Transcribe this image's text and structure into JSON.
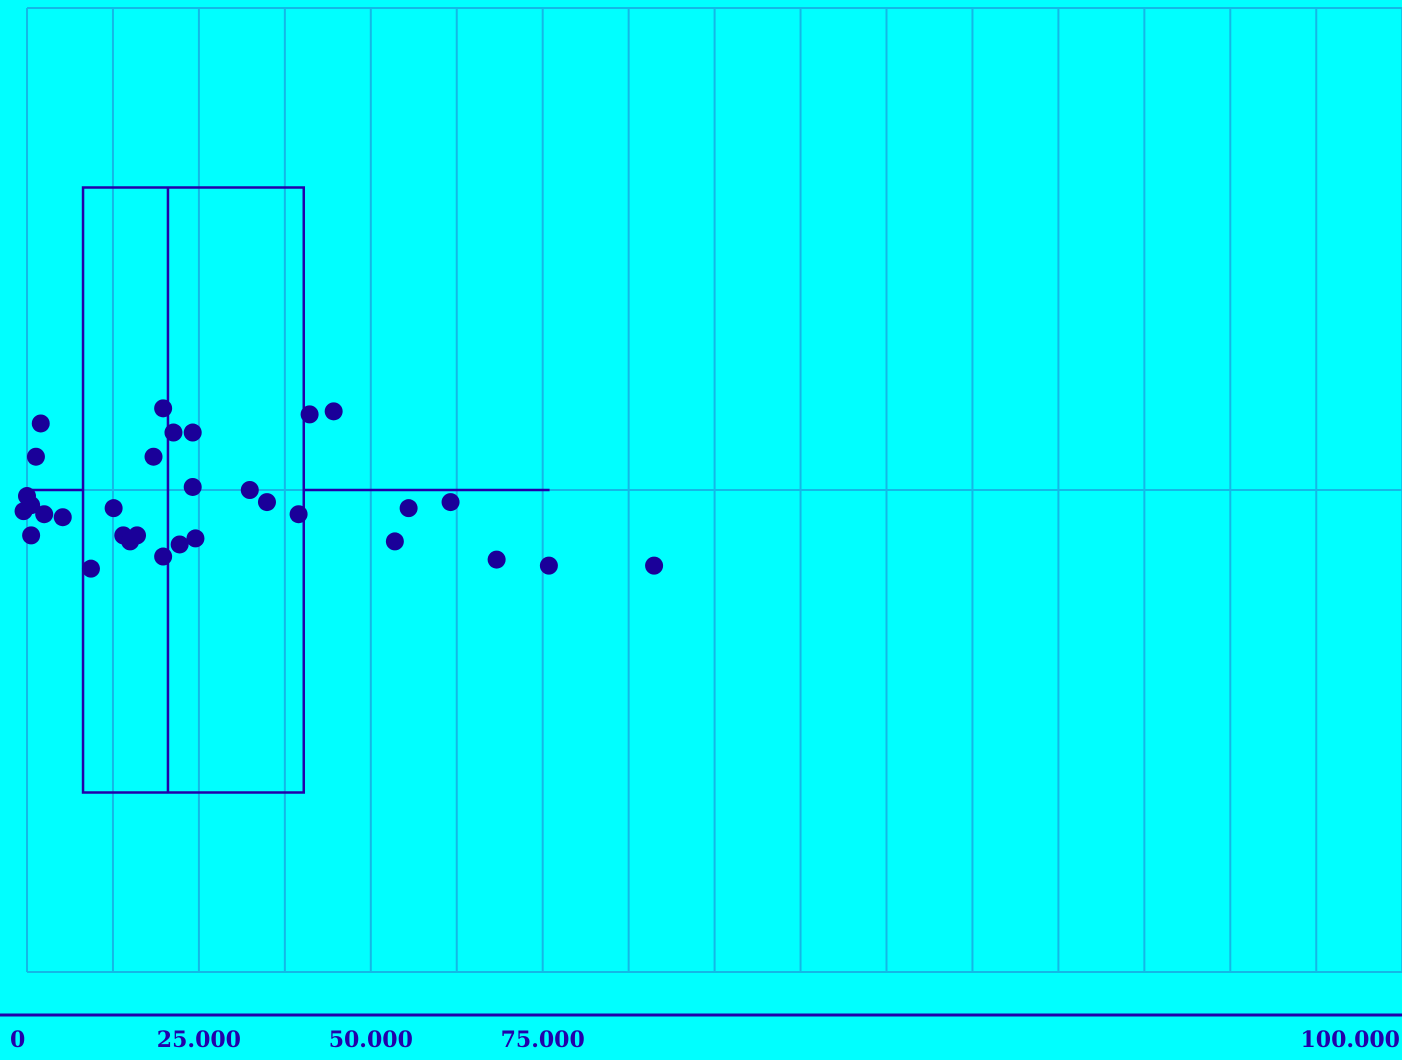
{
  "colors": {
    "background": "#00ffff",
    "grid": "#14b8e6",
    "box": "#2200aa",
    "points": "#1a0099",
    "axis": "#2200aa",
    "tick_label": "#2200aa"
  },
  "chart_data": {
    "type": "box",
    "orientation": "horizontal",
    "title": "",
    "xlabel": "",
    "ylabel": "",
    "xlim": [
      -2000,
      100000
    ],
    "grid": {
      "vertical": true,
      "horizontal": false
    },
    "ticks": [
      0,
      25000,
      50000,
      75000,
      100000
    ],
    "tick_labels": [
      "0",
      "25.000",
      "50.000",
      "75.000",
      "100.000"
    ],
    "box": {
      "whisker_low": 0,
      "q1": 8150,
      "median": 20500,
      "q3": 40250,
      "whisker_high": 76000
    },
    "points": [
      {
        "x": -500,
        "jitter": 0.07
      },
      {
        "x": 0,
        "jitter": 0.02
      },
      {
        "x": 600,
        "jitter": 0.05
      },
      {
        "x": 600,
        "jitter": 0.15
      },
      {
        "x": 1300,
        "jitter": -0.11
      },
      {
        "x": 2000,
        "jitter": -0.22
      },
      {
        "x": 2500,
        "jitter": 0.08
      },
      {
        "x": 5200,
        "jitter": 0.09
      },
      {
        "x": 9300,
        "jitter": 0.26
      },
      {
        "x": 12600,
        "jitter": 0.06
      },
      {
        "x": 14000,
        "jitter": 0.15
      },
      {
        "x": 15000,
        "jitter": 0.17
      },
      {
        "x": 16000,
        "jitter": 0.15
      },
      {
        "x": 18400,
        "jitter": -0.11
      },
      {
        "x": 19800,
        "jitter": 0.22
      },
      {
        "x": 19800,
        "jitter": -0.27
      },
      {
        "x": 21300,
        "jitter": -0.19
      },
      {
        "x": 22200,
        "jitter": 0.18
      },
      {
        "x": 24100,
        "jitter": -0.19
      },
      {
        "x": 24100,
        "jitter": -0.01
      },
      {
        "x": 24500,
        "jitter": 0.16
      },
      {
        "x": 32400,
        "jitter": 0.0
      },
      {
        "x": 34900,
        "jitter": 0.04
      },
      {
        "x": 39500,
        "jitter": 0.08
      },
      {
        "x": 41100,
        "jitter": -0.25
      },
      {
        "x": 44600,
        "jitter": -0.26
      },
      {
        "x": 53500,
        "jitter": 0.17
      },
      {
        "x": 55500,
        "jitter": 0.06
      },
      {
        "x": 61600,
        "jitter": 0.04
      },
      {
        "x": 68300,
        "jitter": 0.23
      },
      {
        "x": 75900,
        "jitter": 0.25
      },
      {
        "x": 91200,
        "jitter": 0.25
      }
    ]
  }
}
